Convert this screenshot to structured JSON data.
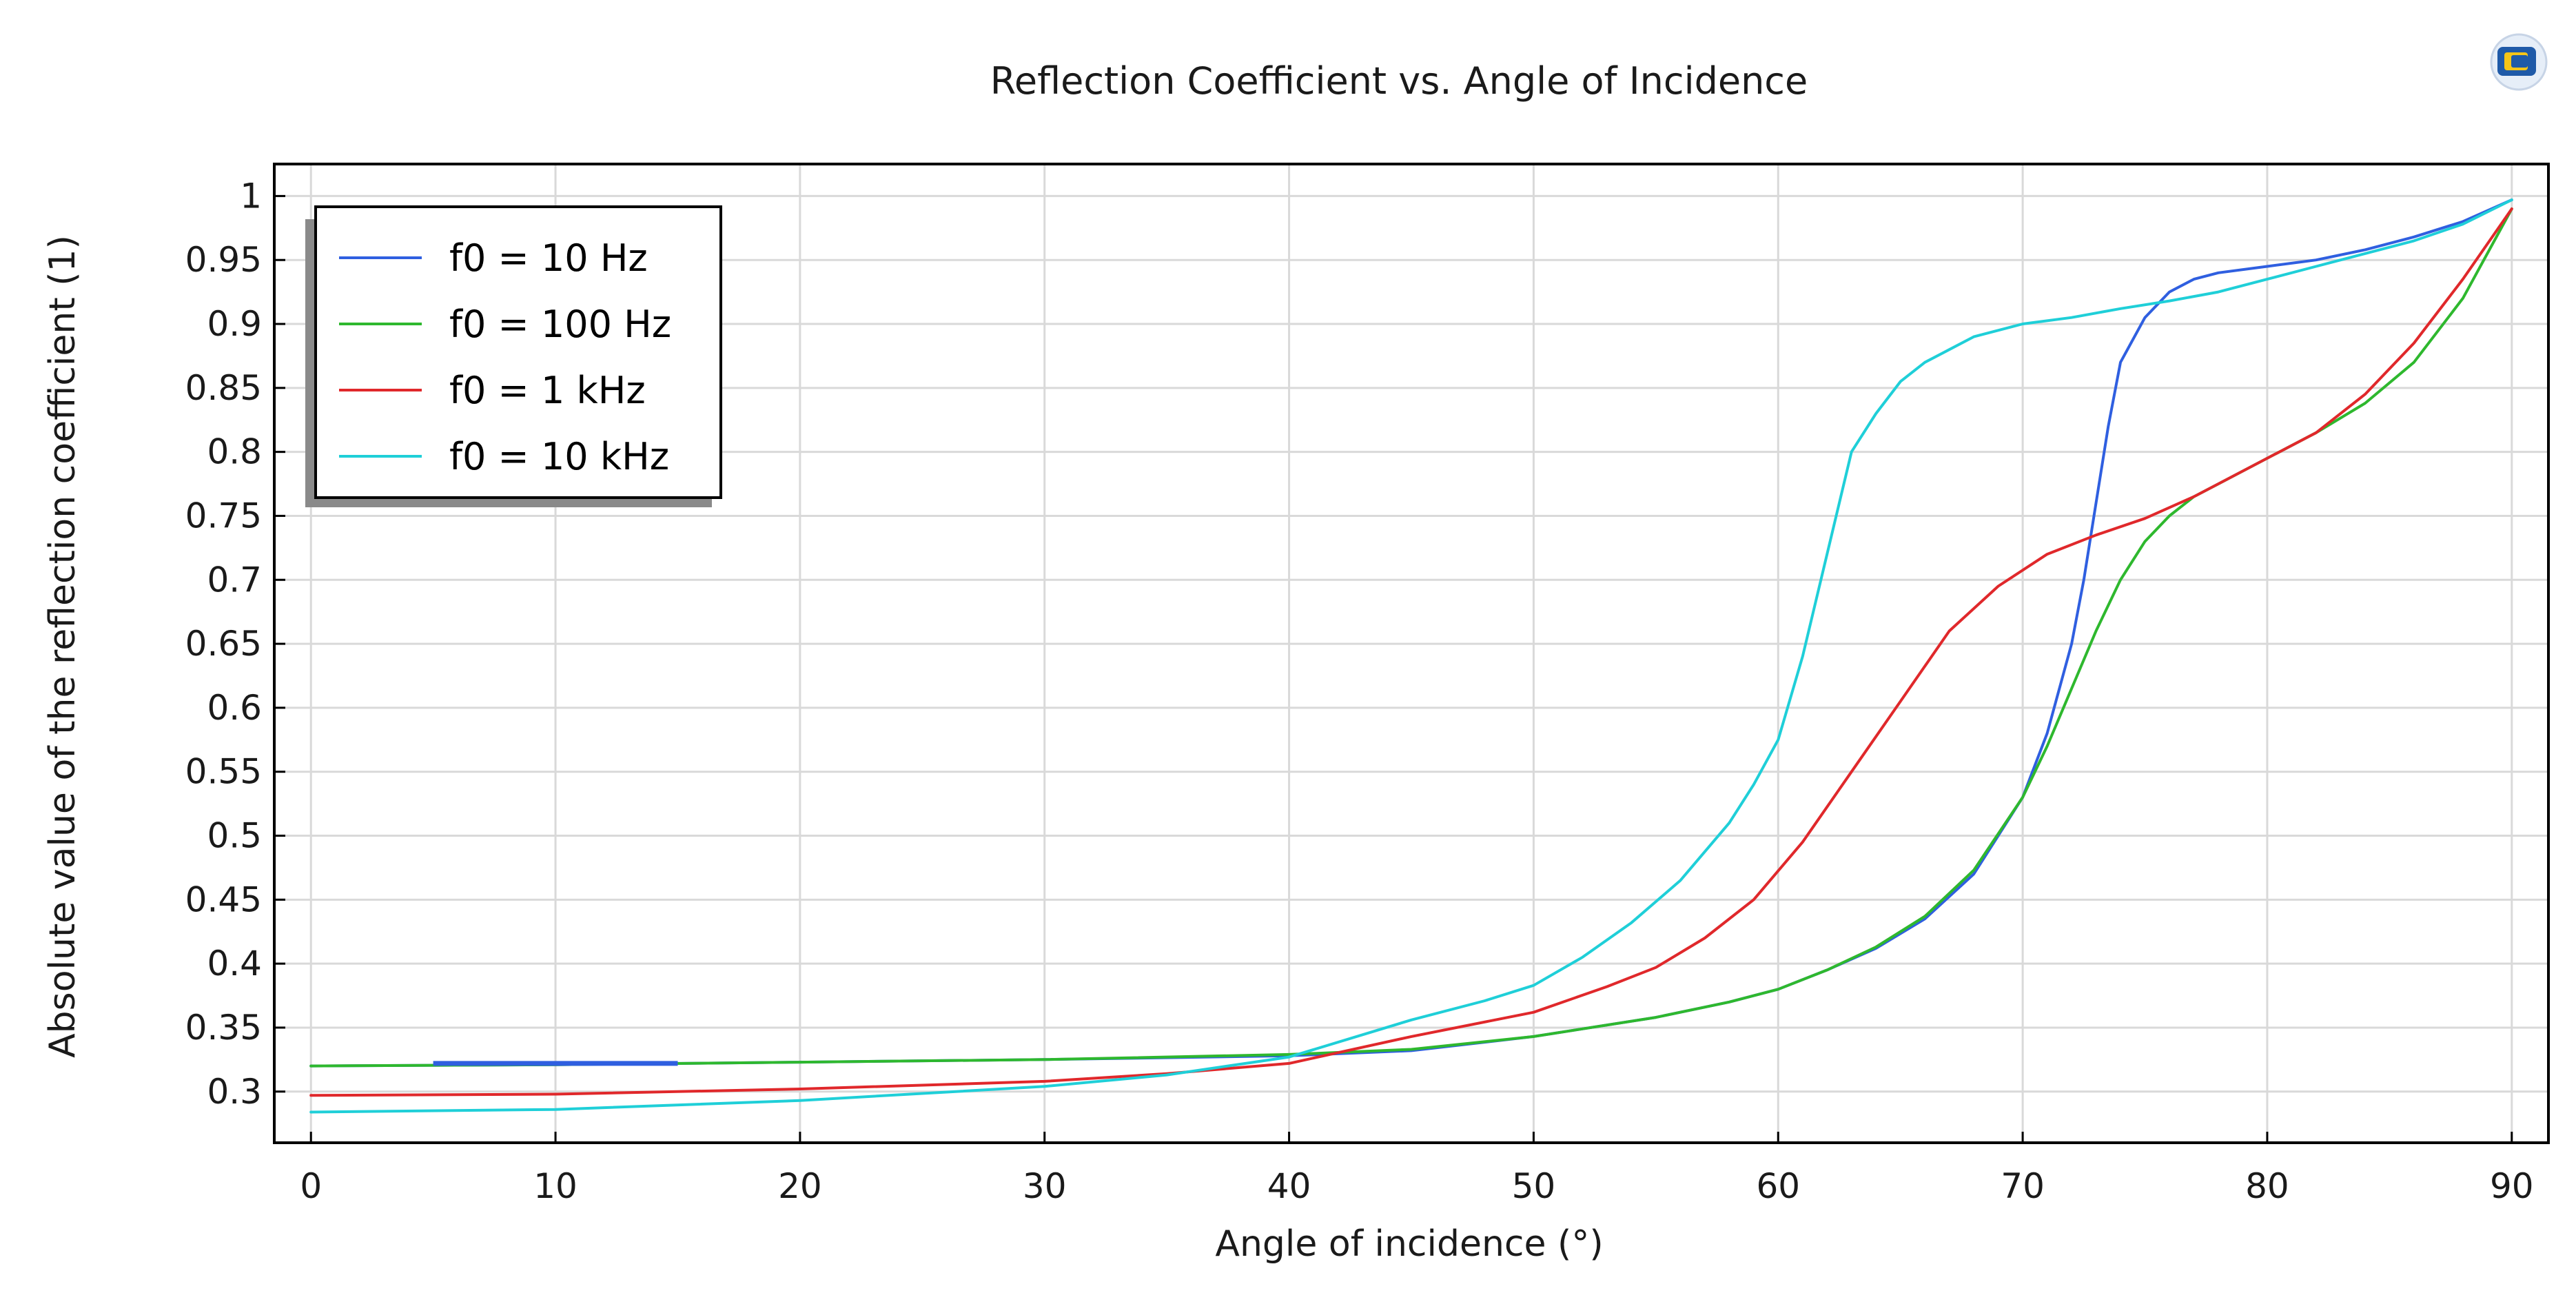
{
  "app_icon": {
    "name": "comsol-logo-icon"
  },
  "chart_data": {
    "type": "line",
    "title": "Reflection Coefficient vs. Angle of Incidence",
    "xlabel": "Angle of incidence (°)",
    "ylabel": "Absolute value of the reflection coefficient (1)",
    "xlim": [
      -1.5,
      91.5
    ],
    "ylim": [
      0.26,
      1.025
    ],
    "xticks": [
      0,
      10,
      20,
      30,
      40,
      50,
      60,
      70,
      80,
      90
    ],
    "yticks": [
      0.3,
      0.35,
      0.4,
      0.45,
      0.5,
      0.55,
      0.6,
      0.65,
      0.7,
      0.75,
      0.8,
      0.85,
      0.9,
      0.95,
      1
    ],
    "ytick_labels": [
      "0.3",
      "0.35",
      "0.4",
      "0.45",
      "0.5",
      "0.55",
      "0.6",
      "0.65",
      "0.7",
      "0.75",
      "0.8",
      "0.85",
      "0.9",
      "0.95",
      "1"
    ],
    "grid": true,
    "legend_position": "top-left",
    "series": [
      {
        "name": "f0 = 10 Hz",
        "color": "#2f5fe0",
        "x": [
          0,
          10,
          20,
          30,
          40,
          45,
          50,
          55,
          58,
          60,
          62,
          64,
          66,
          68,
          70,
          71,
          72,
          72.5,
          73,
          73.5,
          74,
          75,
          76,
          77,
          78,
          80,
          82,
          84,
          86,
          88,
          90
        ],
        "y": [
          0.32,
          0.321,
          0.323,
          0.325,
          0.328,
          0.332,
          0.343,
          0.358,
          0.37,
          0.38,
          0.395,
          0.412,
          0.435,
          0.47,
          0.53,
          0.58,
          0.65,
          0.7,
          0.76,
          0.82,
          0.87,
          0.905,
          0.925,
          0.935,
          0.94,
          0.945,
          0.95,
          0.958,
          0.968,
          0.98,
          0.997
        ]
      },
      {
        "name": "f0 = 100 Hz",
        "color": "#2eb82e",
        "x": [
          0,
          10,
          20,
          30,
          40,
          45,
          50,
          55,
          58,
          60,
          62,
          64,
          66,
          68,
          70,
          71,
          72,
          73,
          74,
          75,
          76,
          77,
          78,
          80,
          82,
          84,
          86,
          88,
          90
        ],
        "y": [
          0.32,
          0.321,
          0.323,
          0.325,
          0.329,
          0.333,
          0.343,
          0.358,
          0.37,
          0.38,
          0.395,
          0.413,
          0.437,
          0.473,
          0.53,
          0.57,
          0.615,
          0.66,
          0.7,
          0.73,
          0.75,
          0.765,
          0.775,
          0.795,
          0.815,
          0.838,
          0.87,
          0.92,
          0.99
        ]
      },
      {
        "name": "f0 = 1 kHz",
        "color": "#e0282b",
        "x": [
          0,
          10,
          20,
          30,
          35,
          40,
          45,
          50,
          53,
          55,
          57,
          59,
          61,
          63,
          65,
          67,
          69,
          71,
          73,
          75,
          77,
          80,
          82,
          84,
          86,
          88,
          90
        ],
        "y": [
          0.297,
          0.298,
          0.302,
          0.308,
          0.314,
          0.322,
          0.343,
          0.362,
          0.382,
          0.397,
          0.42,
          0.45,
          0.495,
          0.55,
          0.605,
          0.66,
          0.695,
          0.72,
          0.735,
          0.748,
          0.765,
          0.795,
          0.815,
          0.845,
          0.885,
          0.935,
          0.99
        ]
      },
      {
        "name": "f0 = 10 kHz",
        "color": "#1fcfd8",
        "x": [
          0,
          10,
          20,
          30,
          35,
          40,
          45,
          48,
          50,
          52,
          54,
          56,
          58,
          59,
          60,
          61,
          62,
          63,
          64,
          65,
          66,
          67,
          68,
          70,
          72,
          74,
          76,
          78,
          80,
          82,
          84,
          86,
          88,
          90
        ],
        "y": [
          0.284,
          0.286,
          0.293,
          0.304,
          0.313,
          0.327,
          0.356,
          0.371,
          0.383,
          0.405,
          0.432,
          0.465,
          0.51,
          0.54,
          0.575,
          0.64,
          0.72,
          0.8,
          0.83,
          0.855,
          0.87,
          0.88,
          0.89,
          0.9,
          0.905,
          0.912,
          0.918,
          0.925,
          0.935,
          0.945,
          0.955,
          0.965,
          0.978,
          0.997
        ]
      }
    ],
    "extra_segments": [
      {
        "series": "f0 = 10 Hz",
        "x": [
          5,
          15
        ],
        "y": [
          0.322,
          0.322
        ]
      }
    ]
  }
}
